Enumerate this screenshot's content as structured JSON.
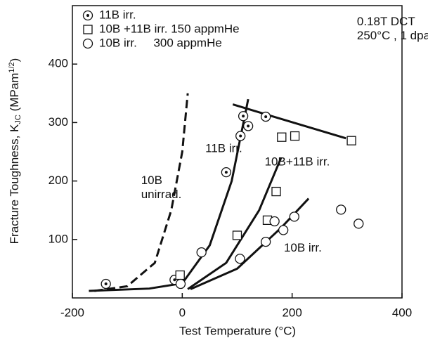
{
  "chart_data": {
    "type": "scatter",
    "x_label": "Test Temperature (°C)",
    "y_label": {
      "main": "Fracture Toughness, K",
      "sub": "JC",
      "unit": " (MPam",
      "sup": "1/2",
      "end": ")"
    },
    "xlim": [
      -200,
      400
    ],
    "xticks": [
      -200,
      0,
      200,
      400
    ],
    "ylim": [
      0,
      500
    ],
    "yticks": [
      100,
      200,
      300,
      400
    ],
    "series": [
      {
        "name": "11B irr.",
        "marker": "dotted-circle",
        "color": "#111",
        "x": [
          -139,
          -14,
          80,
          106,
          111,
          120,
          152
        ],
        "values": [
          24,
          31,
          215,
          277,
          311,
          294,
          310
        ]
      },
      {
        "name": "10B +11B irr. 150 appmHe",
        "marker": "square",
        "color": "#111",
        "x": [
          -4,
          100,
          155,
          171,
          181,
          205,
          308
        ],
        "values": [
          39,
          107,
          133,
          182,
          275,
          277,
          269
        ]
      },
      {
        "name": "10B irr.     300 appmHe",
        "marker": "circle",
        "color": "#111",
        "x": [
          -3,
          35,
          105,
          152,
          168,
          184,
          204,
          289,
          321
        ],
        "values": [
          24,
          78,
          67,
          96,
          131,
          116,
          139,
          151,
          127
        ]
      }
    ],
    "curves": [
      {
        "style": "dashed",
        "x": [
          -160,
          -100,
          -50,
          -20,
          0,
          10
        ],
        "values": [
          12,
          20,
          60,
          150,
          250,
          350
        ]
      },
      {
        "style": "solid",
        "x": [
          -170,
          -60,
          0,
          50,
          90,
          120
        ],
        "values": [
          12,
          16,
          25,
          90,
          200,
          340
        ]
      },
      {
        "style": "solid",
        "x": [
          10,
          80,
          140,
          180
        ],
        "values": [
          15,
          60,
          150,
          240
        ]
      },
      {
        "style": "solid",
        "x": [
          15,
          100,
          180,
          230
        ],
        "values": [
          15,
          50,
          120,
          170
        ]
      },
      {
        "style": "solid",
        "x": [
          92,
          298
        ],
        "values": [
          331,
          273
        ]
      }
    ],
    "annotations": [
      {
        "lines": [
          "10B",
          "unirrad."
        ],
        "x": -75,
        "y": 200
      },
      {
        "lines": [
          "11B irr."
        ],
        "x": 42,
        "y": 255
      },
      {
        "lines": [
          "10B+11B irr."
        ],
        "x": 150,
        "y": 232
      },
      {
        "lines": [
          "10B irr."
        ],
        "x": 185,
        "y": 85
      },
      {
        "lines": [
          "0.18T DCT",
          "250°C , 1 dpa"
        ],
        "x": 318,
        "y": 472
      }
    ]
  }
}
